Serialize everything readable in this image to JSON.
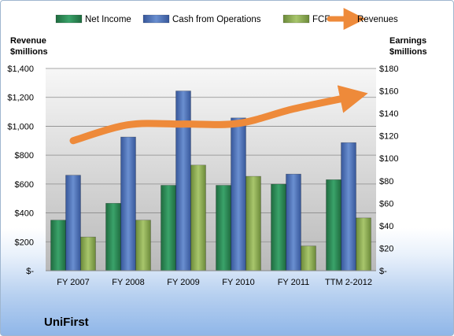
{
  "chart_data": {
    "type": "bar",
    "company": "UniFirst",
    "categories": [
      "FY 2007",
      "FY 2008",
      "FY 2009",
      "FY 2010",
      "FY 2011",
      "TTM 2-2012"
    ],
    "left_axis": {
      "title_lines": [
        "Revenue",
        "$millions"
      ],
      "ylim": [
        0,
        1400
      ],
      "ticks": [
        0,
        200,
        400,
        600,
        800,
        1000,
        1200,
        1400
      ],
      "tick_labels": [
        "$-",
        "$200",
        "$400",
        "$600",
        "$800",
        "$1,000",
        "$1,200",
        "$1,400"
      ]
    },
    "right_axis": {
      "title_lines": [
        "Earnings",
        "$millions"
      ],
      "ylim": [
        0,
        180
      ],
      "ticks": [
        0,
        20,
        40,
        60,
        80,
        100,
        120,
        140,
        160,
        180
      ],
      "tick_labels": [
        "$-",
        "$20",
        "$40",
        "$60",
        "$80",
        "$100",
        "$120",
        "$140",
        "$160",
        "$180"
      ]
    },
    "series": [
      {
        "name": "Net Income",
        "axis": "right",
        "kind": "bar",
        "color": "#2e8b57",
        "values": [
          45,
          60,
          76,
          76,
          77,
          81
        ]
      },
      {
        "name": "Cash from Operations",
        "axis": "right",
        "kind": "bar",
        "color": "#4f74b6",
        "values": [
          85,
          119,
          160,
          136,
          86,
          114
        ]
      },
      {
        "name": "FCF",
        "axis": "right",
        "kind": "bar",
        "color": "#8fae55",
        "values": [
          30,
          45,
          94,
          84,
          22,
          47
        ]
      },
      {
        "name": "Revenues",
        "axis": "left",
        "kind": "line",
        "color": "#ee8a3a",
        "values": [
          900,
          1010,
          1015,
          1020,
          1120,
          1200
        ]
      }
    ],
    "grid": true,
    "legend": "top"
  }
}
